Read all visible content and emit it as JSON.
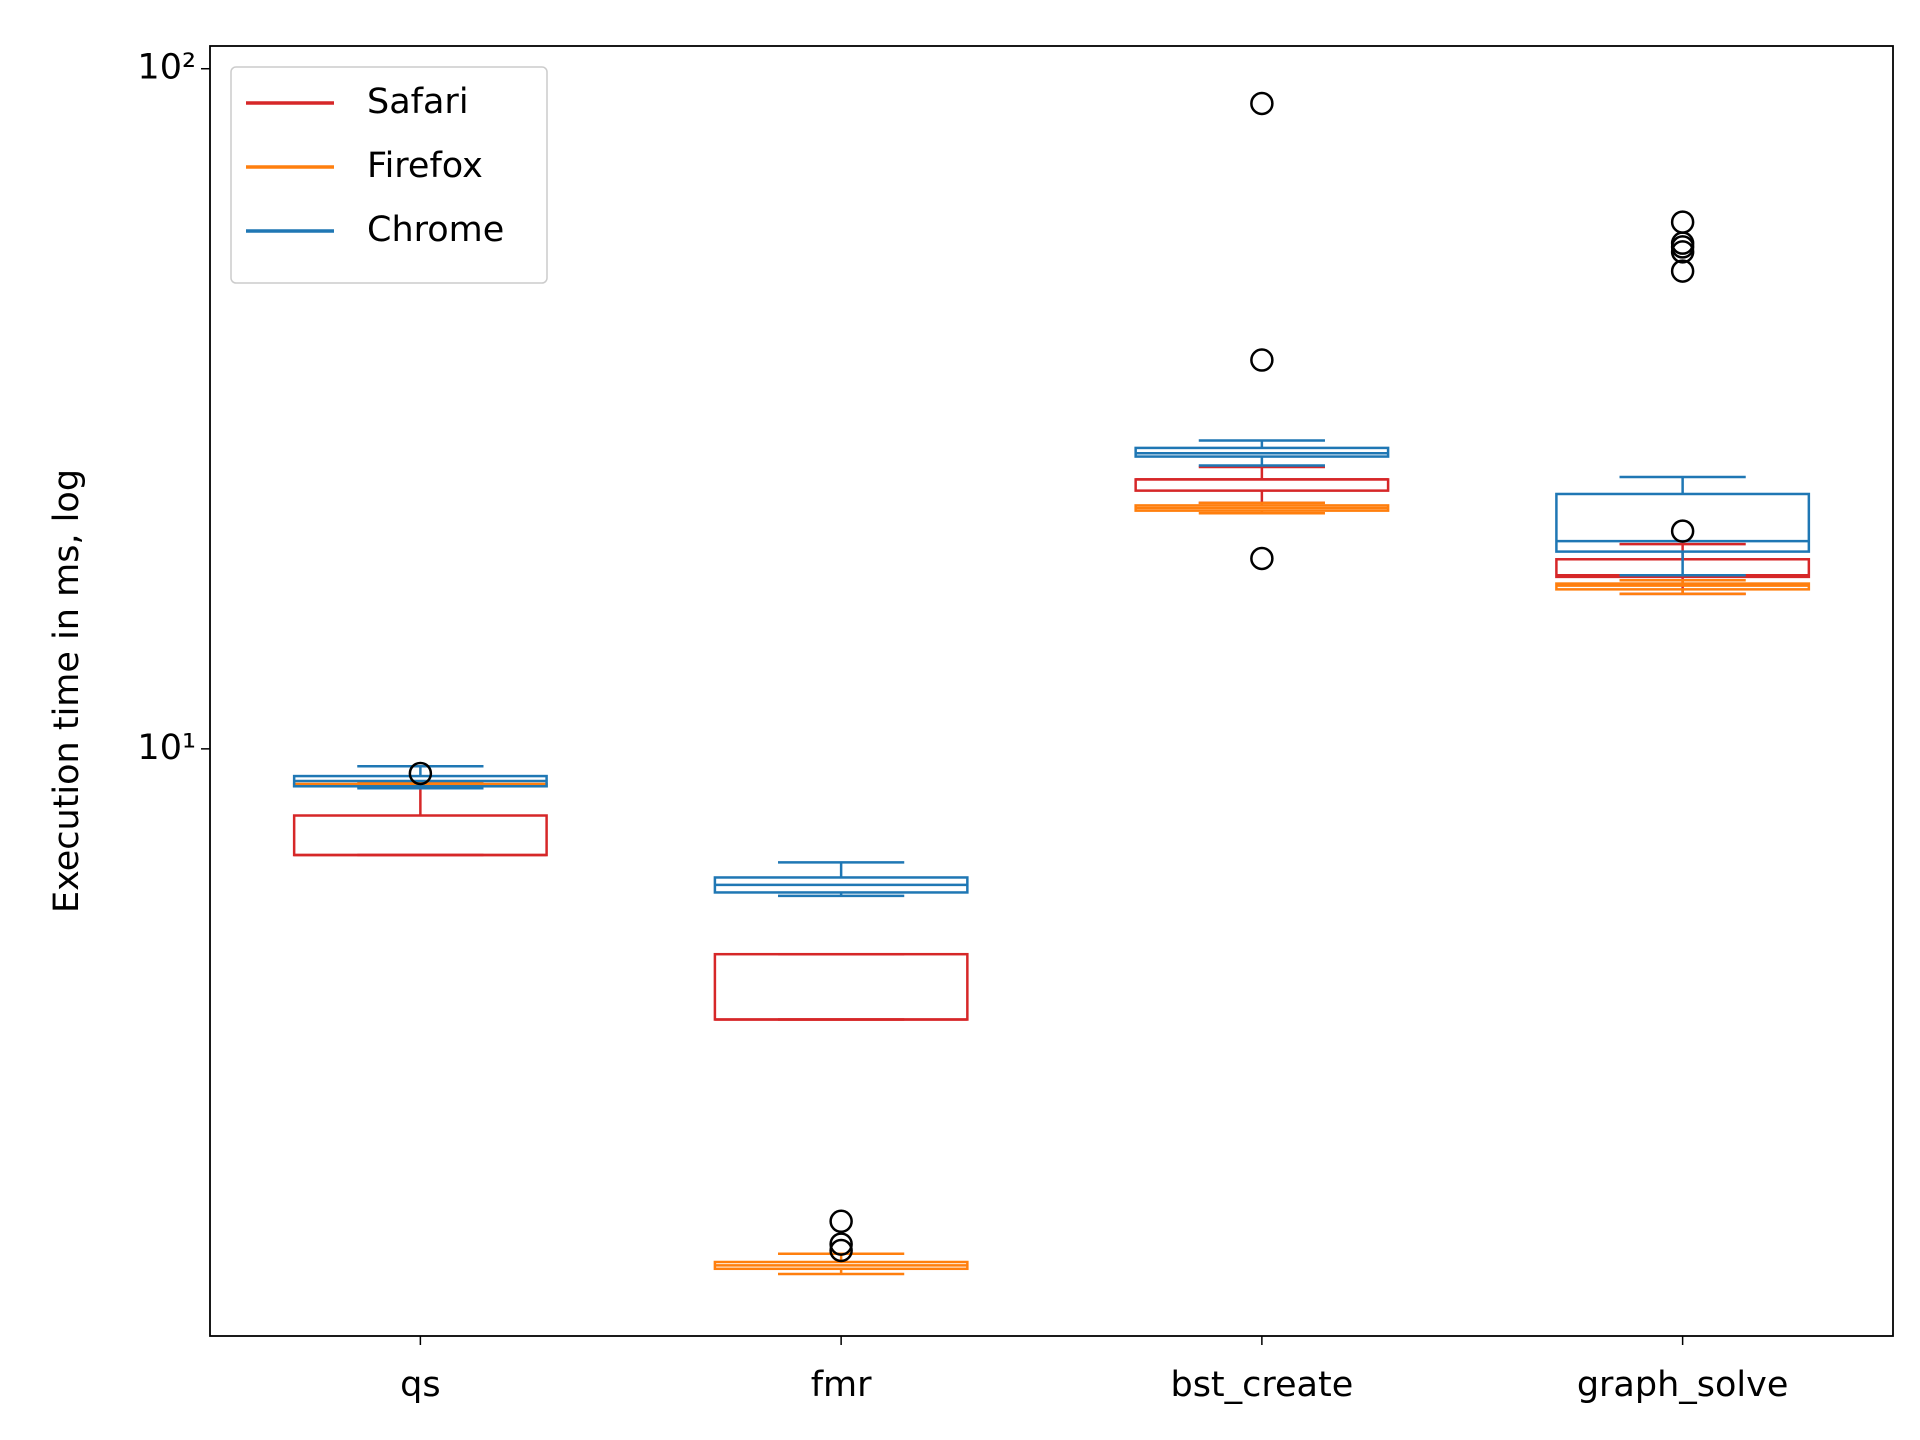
{
  "chart_data": {
    "type": "box",
    "ylabel": "Execution time in ms, log",
    "log_y": true,
    "grid": false,
    "legend": "upper left",
    "categories": [
      "qs",
      "fmr",
      "bst_create",
      "graph_solve"
    ],
    "ylim": [
      1.37,
      108
    ],
    "yticks": [
      {
        "value": 10,
        "label": "10¹"
      },
      {
        "value": 100,
        "label": "10²"
      }
    ],
    "series": [
      {
        "name": "Safari",
        "color": "#d62728",
        "whislo": [
          6.98,
          4.0,
          23.0,
          16.9
        ],
        "q1": [
          6.98,
          4.0,
          23.97,
          17.9
        ],
        "med": [
          6.98,
          4.0,
          24.9,
          18.0
        ],
        "q3": [
          7.98,
          4.99,
          24.9,
          19.0
        ],
        "whishi": [
          8.81,
          4.99,
          25.97,
          20.0
        ],
        "fliers": [
          [],
          [],
          [
            88.9,
            37.3,
            19.05
          ],
          []
        ]
      },
      {
        "name": "Firefox",
        "color": "#ff7f0e",
        "whislo": [
          8.8,
          1.69,
          22.2,
          16.9
        ],
        "q1": [
          8.82,
          1.72,
          22.4,
          17.16
        ],
        "med": [
          8.85,
          1.74,
          22.6,
          17.38
        ],
        "q3": [
          8.88,
          1.76,
          22.8,
          17.5
        ],
        "whishi": [
          8.9,
          1.81,
          23.0,
          17.7
        ],
        "fliers": [
          [],
          [
            2.02,
            1.87,
            1.83
          ],
          [],
          []
        ]
      },
      {
        "name": "Chrome",
        "color": "#1f77b4",
        "whislo": [
          8.75,
          6.08,
          26.1,
          18.0
        ],
        "q1": [
          8.81,
          6.15,
          26.9,
          19.5
        ],
        "med": [
          8.97,
          6.31,
          27.2,
          20.2
        ],
        "q3": [
          9.12,
          6.47,
          27.7,
          23.7
        ],
        "whishi": [
          9.43,
          6.81,
          28.4,
          25.1
        ],
        "fliers": [
          [
            9.2
          ],
          [],
          [],
          [
            59.5,
            55.4,
            54.7,
            53.8,
            50.4,
            20.9
          ]
        ]
      }
    ]
  }
}
